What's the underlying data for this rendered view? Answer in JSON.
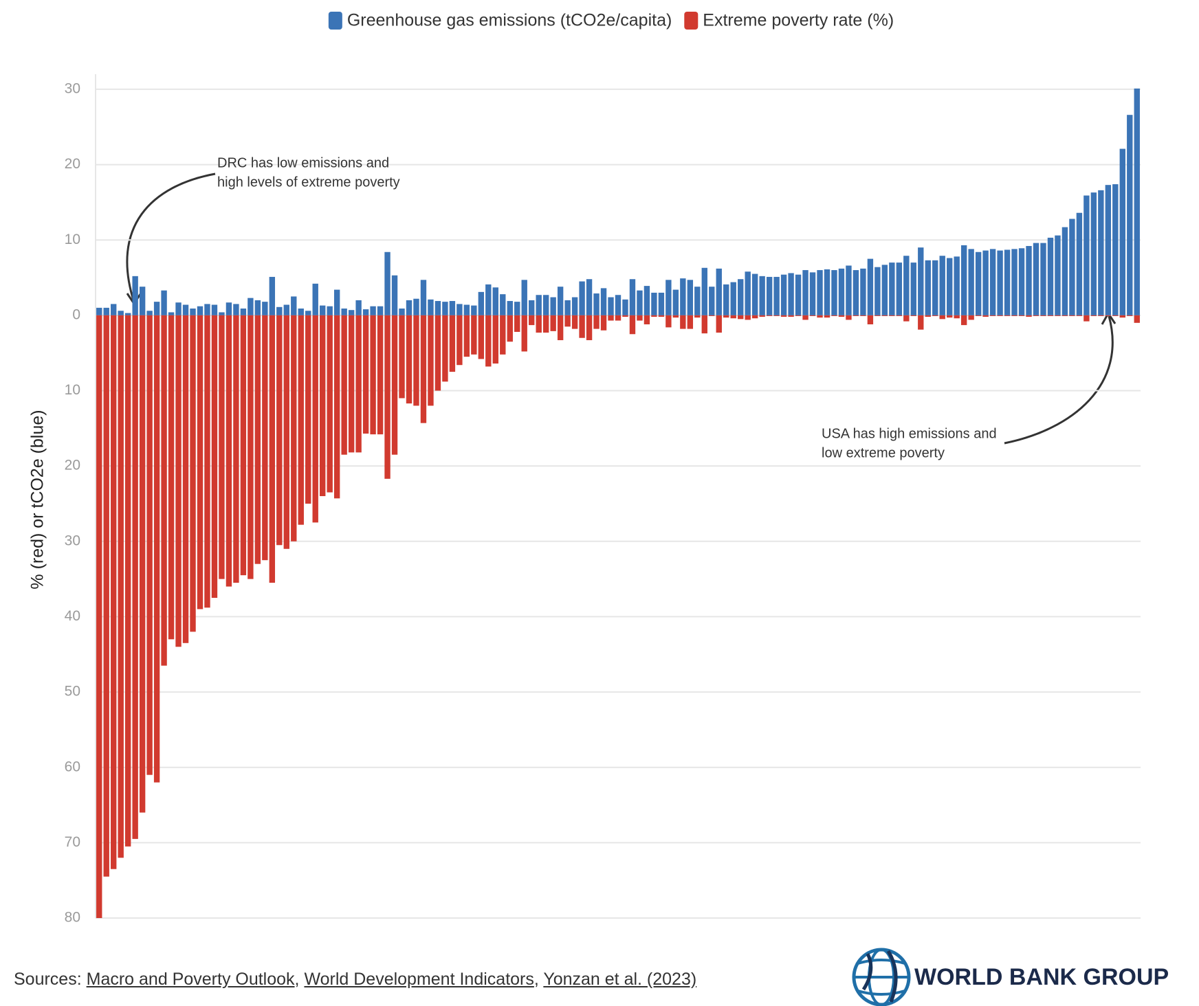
{
  "chart_data": {
    "type": "bar",
    "y_label": "% (red) or tCO2e (blue)",
    "legend": "top",
    "grid": true,
    "ylim": [
      -80,
      32
    ],
    "yticks": [
      30,
      20,
      10,
      0,
      {
        "value": -10,
        "label": "10"
      },
      {
        "value": -20,
        "label": "20"
      },
      {
        "value": -30,
        "label": "30"
      },
      {
        "value": -40,
        "label": "40"
      },
      {
        "value": -50,
        "label": "50"
      },
      {
        "value": -60,
        "label": "60"
      },
      {
        "value": -70,
        "label": "70"
      },
      {
        "value": -80,
        "label": "80"
      }
    ],
    "categories": [
      null,
      null,
      null,
      null,
      null,
      null,
      null,
      null,
      null,
      null,
      null,
      null,
      null,
      null,
      null,
      null,
      null,
      null,
      null,
      null,
      null,
      null,
      null,
      null,
      null,
      null,
      null,
      null,
      null,
      null,
      null,
      null,
      null,
      null,
      null,
      null,
      null,
      null,
      null,
      null,
      null,
      null,
      null,
      null,
      null,
      null,
      null,
      null,
      null,
      null,
      null,
      null,
      null,
      null,
      null,
      null,
      null,
      null,
      null,
      null,
      null,
      null,
      null,
      null,
      null,
      null,
      null,
      null,
      null,
      null,
      null,
      null,
      null,
      null,
      null,
      null,
      null,
      null,
      null,
      null,
      null,
      null,
      null,
      null,
      null,
      null,
      null,
      null,
      null,
      null,
      null,
      null,
      null,
      null,
      null,
      null,
      null,
      null,
      null,
      null,
      null,
      null,
      null,
      null,
      null,
      null,
      null,
      null,
      null,
      null,
      null,
      null,
      null,
      null,
      null,
      null,
      null,
      null,
      null,
      null,
      null,
      null,
      null,
      null,
      null,
      null,
      null,
      null,
      null,
      null,
      null,
      null,
      null,
      null,
      null,
      null,
      null,
      null,
      null,
      null,
      null,
      null,
      null,
      null,
      null
    ],
    "series": [
      {
        "name": "Greenhouse gas emissions (tCO2e/capita)",
        "color": "#3b74b6",
        "values": [
          1.0,
          1.0,
          1.5,
          0.6,
          0.3,
          5.2,
          3.8,
          0.6,
          1.8,
          3.3,
          0.4,
          1.7,
          1.4,
          0.9,
          1.2,
          1.5,
          1.4,
          0.4,
          1.7,
          1.5,
          0.9,
          2.3,
          2.0,
          1.8,
          5.1,
          1.1,
          1.4,
          2.5,
          0.9,
          0.6,
          4.2,
          1.3,
          1.2,
          3.4,
          0.9,
          0.7,
          2.0,
          0.8,
          1.2,
          1.2,
          8.4,
          5.3,
          0.9,
          2.0,
          2.2,
          4.7,
          2.1,
          1.9,
          1.8,
          1.9,
          1.5,
          1.4,
          1.3,
          3.1,
          4.1,
          3.7,
          2.8,
          1.9,
          1.8,
          4.7,
          2.0,
          2.7,
          2.7,
          2.4,
          3.8,
          2.0,
          2.4,
          4.5,
          4.8,
          2.9,
          3.6,
          2.4,
          2.7,
          2.1,
          4.8,
          3.3,
          3.9,
          3.0,
          3.0,
          4.7,
          3.4,
          4.9,
          4.7,
          3.8,
          6.3,
          3.8,
          6.2,
          4.1,
          4.4,
          4.8,
          5.8,
          5.5,
          5.2,
          5.1,
          5.1,
          5.4,
          5.6,
          5.4,
          6.0,
          5.7,
          6.0,
          6.1,
          6.0,
          6.2,
          6.6,
          6.0,
          6.2,
          7.5,
          6.4,
          6.7,
          7.0,
          7.0,
          7.9,
          7.0,
          9.0,
          7.3,
          7.3,
          7.9,
          7.6,
          7.8,
          9.3,
          8.8,
          8.4,
          8.6,
          8.8,
          8.6,
          8.7,
          8.8,
          8.9,
          9.2,
          9.6,
          9.6,
          10.3,
          10.6,
          11.7,
          12.8,
          13.6,
          15.9,
          16.3,
          16.6,
          17.3,
          17.4,
          22.1,
          26.6,
          30.1
        ]
      },
      {
        "name": "Extreme poverty rate (%)",
        "color": "#d13a2f",
        "values": [
          -80,
          -74.5,
          -73.5,
          -72,
          -70.5,
          -69.5,
          -66,
          -61,
          -62,
          -46.5,
          -43,
          -44,
          -43.5,
          -42,
          -39,
          -38.8,
          -37.5,
          -35,
          -36,
          -35.5,
          -34.5,
          -35,
          -33,
          -32.5,
          -35.5,
          -30.5,
          -31,
          -30,
          -27.8,
          -25,
          -27.5,
          -24,
          -23.5,
          -24.3,
          -18.5,
          -18.2,
          -18.2,
          -15.7,
          -15.8,
          -15.8,
          -21.7,
          -18.5,
          -11,
          -11.7,
          -12,
          -14.3,
          -12,
          -10,
          -8.8,
          -7.5,
          -6.6,
          -5.5,
          -5.2,
          -5.8,
          -6.8,
          -6.4,
          -5.2,
          -3.5,
          -2.2,
          -4.8,
          -1.3,
          -2.3,
          -2.3,
          -2.1,
          -3.3,
          -1.5,
          -1.8,
          -3,
          -3.3,
          -1.8,
          -2,
          -0.7,
          -0.7,
          -0.2,
          -2.5,
          -0.7,
          -1.2,
          -0.2,
          -0.2,
          -1.6,
          -0.3,
          -1.8,
          -1.8,
          -0.3,
          -2.4,
          -0.1,
          -2.3,
          -0.3,
          -0.4,
          -0.5,
          -0.6,
          -0.4,
          -0.2,
          -0.1,
          -0.1,
          -0.2,
          -0.2,
          -0.1,
          -0.6,
          -0.1,
          -0.3,
          -0.3,
          -0.1,
          -0.2,
          -0.6,
          -0.1,
          -0.1,
          -1.2,
          -0.1,
          -0.1,
          -0.1,
          -0.1,
          -0.8,
          -0.1,
          -1.9,
          -0.2,
          -0.1,
          -0.5,
          -0.3,
          -0.4,
          -1.3,
          -0.6,
          -0.1,
          -0.2,
          -0.1,
          -0.1,
          -0.1,
          -0.1,
          -0.1,
          -0.2,
          -0.1,
          -0.1,
          -0.1,
          -0.1,
          -0.1,
          -0.1,
          -0.1,
          -0.8,
          -0.1,
          -0.1,
          -0.1,
          -0.1,
          -0.3,
          -0.1,
          -1.0
        ]
      }
    ],
    "annotations": [
      {
        "lines": [
          "DRC has low emissions and",
          "high levels of extreme poverty"
        ]
      },
      {
        "lines": [
          "USA has high emissions and",
          "low extreme poverty"
        ]
      }
    ],
    "source_label": "Sources:",
    "source_separator": ",",
    "sources": [
      "Macro and Poverty Outlook",
      "World Development Indicators",
      "Yonzan et al. (2023)"
    ],
    "logo_text": "WORLD BANK GROUP"
  }
}
